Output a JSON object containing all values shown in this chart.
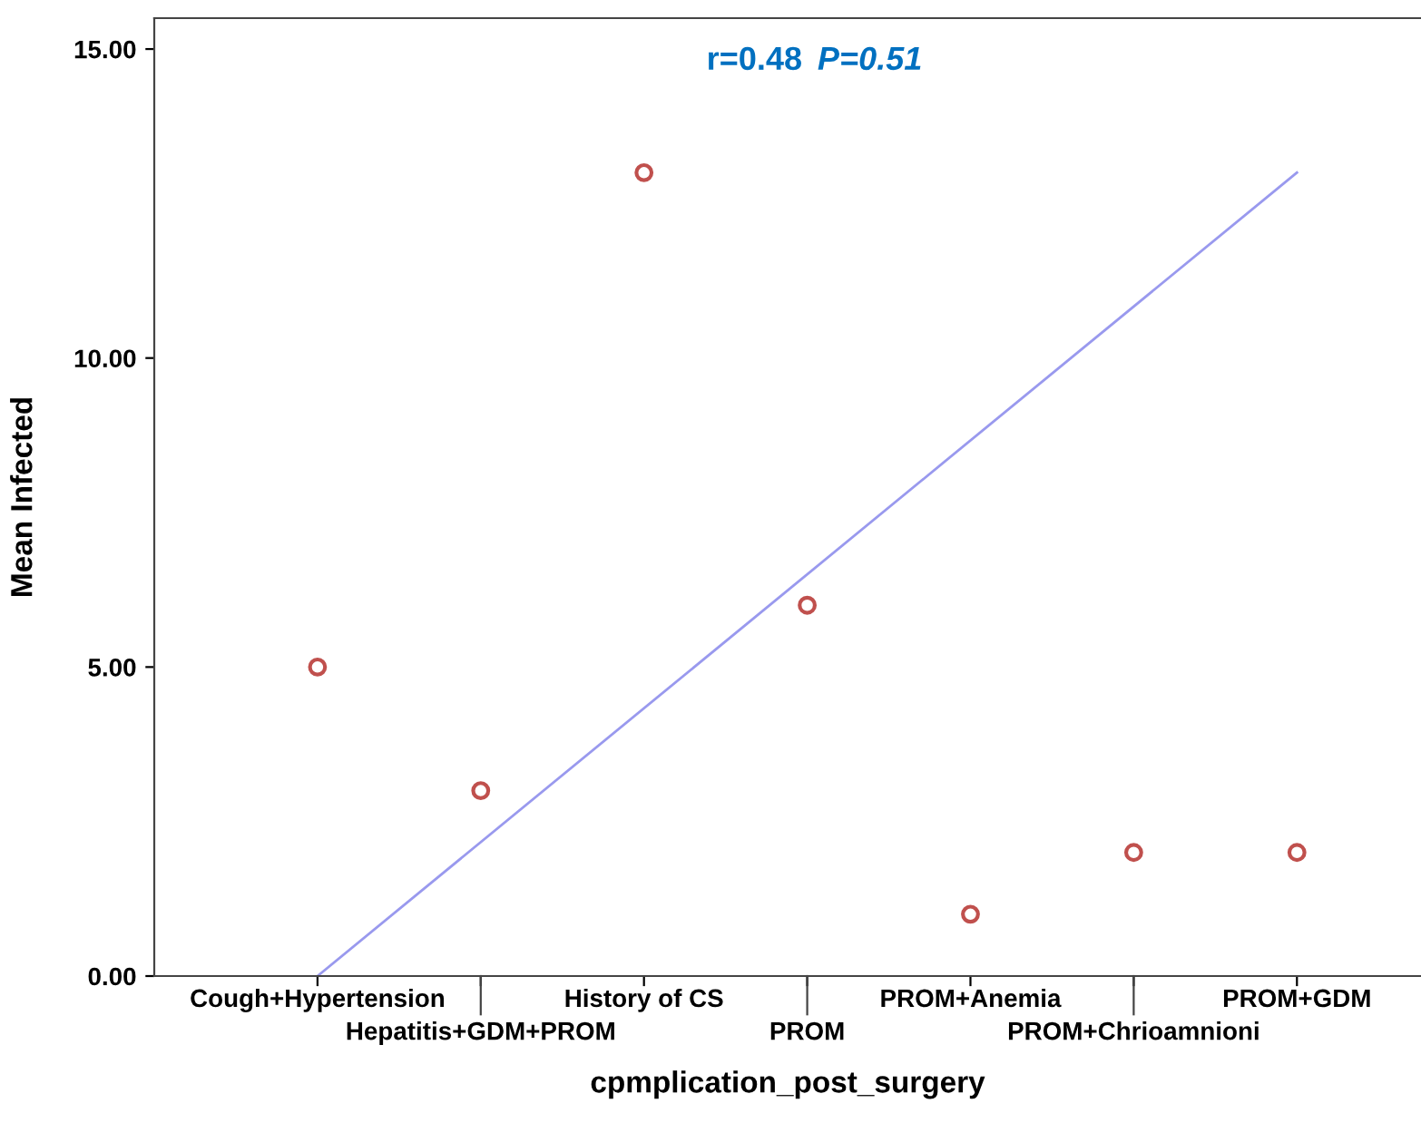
{
  "chart_data": {
    "type": "scatter",
    "xlabel": "cpmplication_post_surgery",
    "ylabel": "Mean Infected",
    "categories": [
      "Cough+Hypertension",
      "Hepatitis+GDM+PROM",
      "History of CS",
      "PROM",
      "PROM+Anemia",
      "PROM+Chrioamnioni",
      "PROM+GDM"
    ],
    "series": [
      {
        "color": "#c0504d",
        "marker": "circle",
        "values": [
          5,
          3,
          13,
          6,
          1,
          2,
          2
        ]
      },
      {
        "type": "line",
        "color": "#9999ee",
        "x": [
          "Cough+Hypertension",
          "PROM+GDM"
        ],
        "values": [
          0,
          13.0
        ]
      }
    ],
    "ylim": [
      0,
      15.5
    ],
    "yticks": [
      {
        "value": 0,
        "label": "0.00"
      },
      {
        "value": 5,
        "label": "5.00"
      },
      {
        "value": 10,
        "label": "10.00"
      },
      {
        "value": 15,
        "label": "15.00"
      }
    ],
    "annotations": [
      "r=0.48",
      "P=0.51"
    ],
    "grid": false,
    "legend": false
  }
}
